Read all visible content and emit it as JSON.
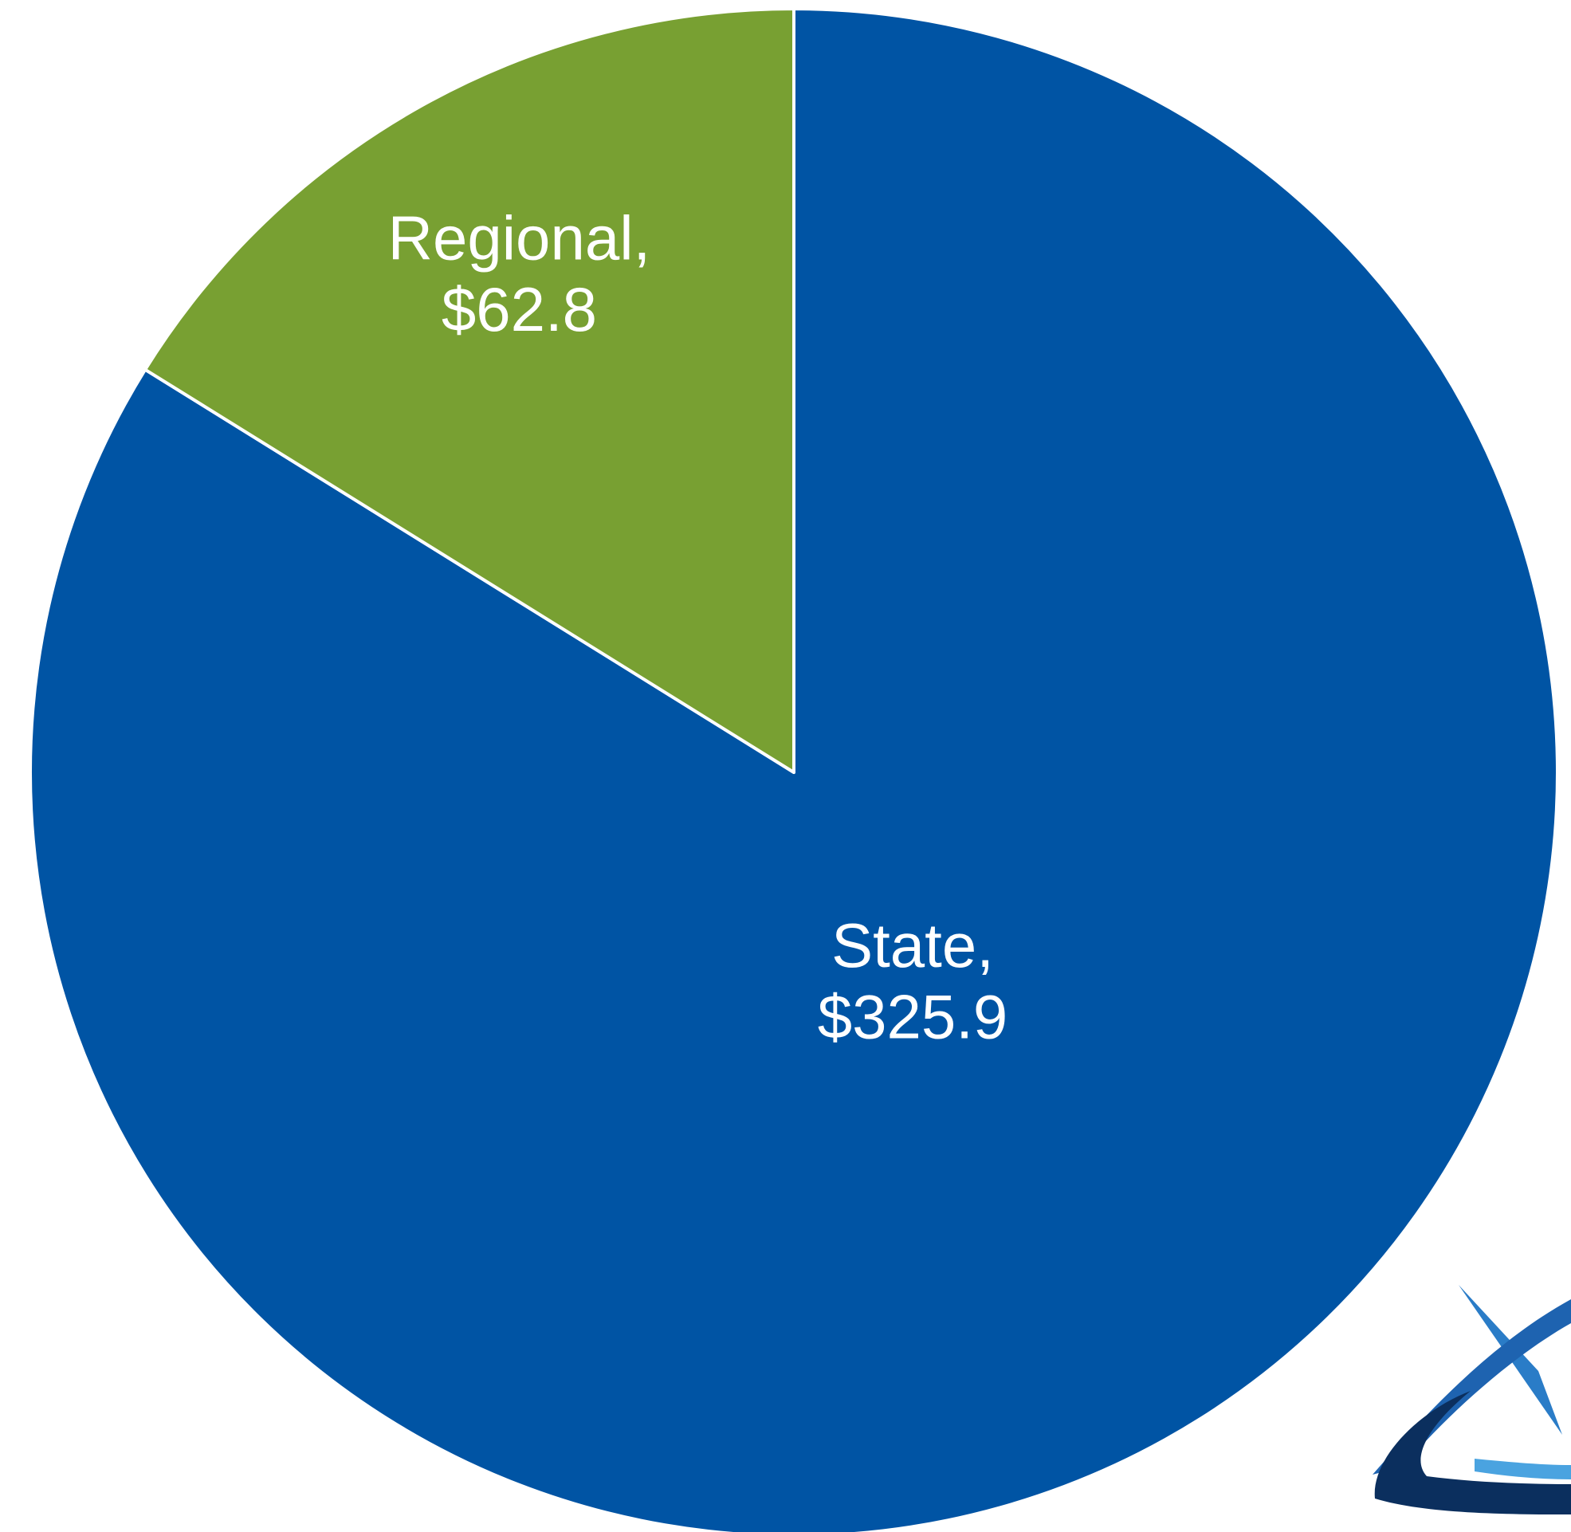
{
  "chart_data": {
    "type": "pie",
    "categories": [
      "State",
      "Regional"
    ],
    "label_separator": ",",
    "values": [
      325.9,
      62.8
    ],
    "value_labels": [
      "$325.9",
      "$62.8"
    ],
    "colors": [
      "#0054a4",
      "#78a032"
    ]
  }
}
